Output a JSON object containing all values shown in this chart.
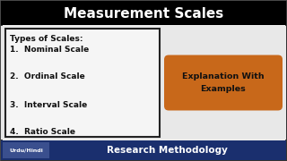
{
  "title": "Measurement Scales",
  "title_bg": "#000000",
  "title_color": "#ffffff",
  "main_bg": "#f0f0f0",
  "border_color": "#333333",
  "list_header": "Types of Scales:",
  "list_items": [
    "1.  Nominal Scale",
    "2.  Ordinal Scale",
    "3.  Interval Scale",
    "4.  Ratio Scale"
  ],
  "list_box_color": "#222222",
  "list_text_color": "#111111",
  "button_text": "Explanation With\nExamples",
  "button_bg": "#c8681a",
  "button_text_color": "#111111",
  "footer_bg": "#1a2f6e",
  "footer_left_text": "Urdu/Hindi",
  "footer_left_bg": "#3a4f8e",
  "footer_right_text": "Research Methodology",
  "footer_text_color": "#ffffff",
  "fig_width": 3.2,
  "fig_height": 1.8,
  "dpi": 100
}
